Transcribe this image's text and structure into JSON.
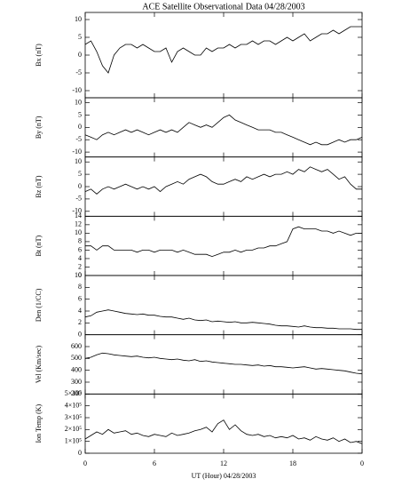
{
  "title": "ACE Satellite Observational Data   04/28/2003",
  "x_axis": {
    "label": "UT (Hour)  04/28/2003",
    "xlim": [
      0,
      24
    ],
    "xticks": [
      0,
      6,
      12,
      18,
      {
        "value": 24,
        "label": "0"
      }
    ],
    "x": [
      0,
      0.5,
      1,
      1.5,
      2,
      2.5,
      3,
      3.5,
      4,
      4.5,
      5,
      5.5,
      6,
      6.5,
      7,
      7.5,
      8,
      8.5,
      9,
      9.5,
      10,
      10.5,
      11,
      11.5,
      12,
      12.5,
      13,
      13.5,
      14,
      14.5,
      15,
      15.5,
      16,
      16.5,
      17,
      17.5,
      18,
      18.5,
      19,
      19.5,
      20,
      20.5,
      21,
      21.5,
      22,
      22.5,
      23,
      23.5,
      24
    ]
  },
  "chart_data": [
    {
      "type": "line",
      "ylabel": "Bx (nT)",
      "ylim": [
        -12,
        12
      ],
      "yticks": [
        -10,
        -5,
        0,
        5,
        10
      ],
      "values": [
        3,
        4,
        1,
        -3,
        -5,
        0,
        2,
        3,
        3,
        2,
        3,
        2,
        1,
        1,
        2,
        -2,
        1,
        2,
        1,
        0,
        0,
        2,
        1,
        2,
        2,
        3,
        2,
        3,
        3,
        4,
        3,
        4,
        4,
        3,
        4,
        5,
        4,
        5,
        6,
        4,
        5,
        6,
        6,
        7,
        6,
        7,
        8,
        8,
        8
      ]
    },
    {
      "type": "line",
      "ylabel": "By (nT)",
      "ylim": [
        -12,
        12
      ],
      "yticks": [
        -10,
        -5,
        0,
        5,
        10
      ],
      "values": [
        -3,
        -4,
        -5,
        -3,
        -2,
        -3,
        -2,
        -1,
        -2,
        -1,
        -2,
        -3,
        -2,
        -1,
        -2,
        -1,
        -2,
        0,
        2,
        1,
        0,
        1,
        0,
        2,
        4,
        5,
        3,
        2,
        1,
        0,
        -1,
        -1,
        -1,
        -2,
        -2,
        -3,
        -4,
        -5,
        -6,
        -7,
        -6,
        -7,
        -7,
        -6,
        -5,
        -6,
        -5,
        -5,
        -4
      ]
    },
    {
      "type": "line",
      "ylabel": "Bz (nT)",
      "ylim": [
        -12,
        12
      ],
      "yticks": [
        -10,
        -5,
        0,
        5,
        10
      ],
      "values": [
        -2,
        -1,
        -3,
        -1,
        0,
        -1,
        0,
        1,
        0,
        -1,
        0,
        -1,
        0,
        -2,
        0,
        1,
        2,
        1,
        3,
        4,
        5,
        4,
        2,
        1,
        1,
        2,
        3,
        2,
        4,
        3,
        4,
        5,
        4,
        5,
        5,
        6,
        5,
        7,
        6,
        8,
        7,
        6,
        7,
        5,
        3,
        4,
        1,
        -1,
        -1
      ]
    },
    {
      "type": "line",
      "ylabel": "Bt (nT)",
      "ylim": [
        0,
        14
      ],
      "yticks": [
        0,
        2,
        4,
        6,
        8,
        10,
        12,
        14
      ],
      "values": [
        7,
        7,
        6,
        7,
        7,
        6,
        6,
        6,
        6,
        5.5,
        6,
        6,
        5.5,
        6,
        6,
        6,
        5.5,
        6,
        5.5,
        5,
        5,
        5,
        4.5,
        5,
        5.5,
        5.5,
        6,
        5.5,
        6,
        6,
        6.5,
        6.5,
        7,
        7,
        7.5,
        8,
        11,
        11.5,
        11,
        11,
        11,
        10.5,
        10.5,
        10,
        10.5,
        10,
        9.5,
        10,
        10
      ]
    },
    {
      "type": "line",
      "ylabel": "Den (1/CC)",
      "ylim": [
        0,
        10
      ],
      "yticks": [
        0,
        2,
        4,
        6,
        8,
        10
      ],
      "values": [
        3,
        3.2,
        3.8,
        4,
        4.2,
        4,
        3.8,
        3.6,
        3.5,
        3.4,
        3.5,
        3.3,
        3.3,
        3.1,
        3,
        3,
        2.8,
        2.6,
        2.8,
        2.5,
        2.4,
        2.5,
        2.2,
        2.3,
        2.2,
        2.1,
        2.2,
        2,
        2,
        2.1,
        2,
        1.9,
        1.8,
        1.6,
        1.5,
        1.5,
        1.4,
        1.3,
        1.5,
        1.3,
        1.2,
        1.2,
        1.1,
        1.1,
        1,
        1,
        1,
        0.9,
        0.9
      ]
    },
    {
      "type": "line",
      "ylabel": "Vel (Km/sec)",
      "ylim": [
        200,
        700
      ],
      "yticks": [
        200,
        300,
        400,
        500,
        600
      ],
      "values": [
        500,
        510,
        530,
        545,
        540,
        530,
        525,
        520,
        515,
        520,
        510,
        505,
        510,
        500,
        495,
        490,
        495,
        485,
        480,
        490,
        475,
        480,
        470,
        465,
        460,
        455,
        450,
        450,
        445,
        440,
        445,
        435,
        440,
        430,
        430,
        425,
        420,
        425,
        430,
        420,
        410,
        415,
        410,
        405,
        400,
        395,
        385,
        375,
        370
      ]
    },
    {
      "type": "line",
      "ylabel": "Ion Temp (K)",
      "ylim": [
        0,
        500000
      ],
      "yticks": [
        0,
        {
          "value": 100000,
          "label": "1×10⁵"
        },
        {
          "value": 200000,
          "label": "2×10⁵"
        },
        {
          "value": 300000,
          "label": "3×10⁵"
        },
        {
          "value": 400000,
          "label": "4×10⁵"
        },
        {
          "value": 500000,
          "label": "5×10⁵"
        }
      ],
      "values": [
        120000,
        150000,
        180000,
        160000,
        200000,
        170000,
        180000,
        190000,
        160000,
        170000,
        150000,
        140000,
        160000,
        150000,
        140000,
        170000,
        150000,
        160000,
        170000,
        190000,
        200000,
        220000,
        180000,
        250000,
        280000,
        200000,
        240000,
        190000,
        160000,
        150000,
        160000,
        140000,
        150000,
        130000,
        140000,
        130000,
        150000,
        120000,
        130000,
        110000,
        140000,
        120000,
        110000,
        130000,
        100000,
        120000,
        90000,
        100000,
        80000
      ]
    }
  ]
}
